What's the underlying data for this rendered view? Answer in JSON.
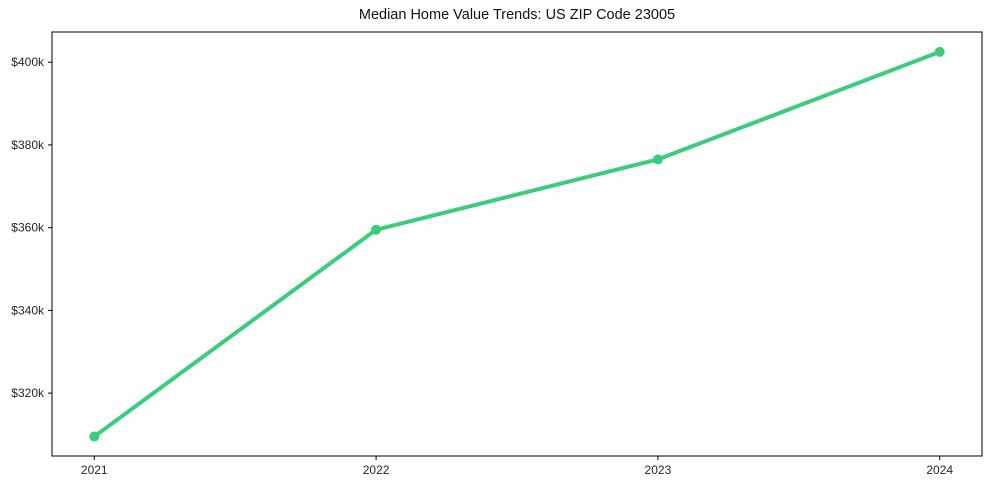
{
  "chart_data": {
    "type": "line",
    "title": "Median Home Value Trends: US ZIP Code 23005",
    "x": [
      2021,
      2022,
      2023,
      2024
    ],
    "xtick_labels": [
      "2021",
      "2022",
      "2023",
      "2024"
    ],
    "series": [
      {
        "name": "Median Home Value",
        "values": [
          309500,
          359500,
          376500,
          402500
        ]
      }
    ],
    "yticks": [
      320000,
      340000,
      360000,
      380000,
      400000
    ],
    "ytick_labels": [
      "$320k",
      "$340k",
      "$360k",
      "$380k",
      "$400k"
    ],
    "xlim": [
      2020.85,
      2024.15
    ],
    "ylim": [
      304800,
      407300
    ],
    "grid": false,
    "legend": "none",
    "frame": "full-box",
    "line_color": "#3bcd7d",
    "line_width": 4,
    "marker_radius": 5,
    "axis_color": "#000000",
    "tick_label_color": "#262626",
    "background_color": "#ffffff"
  }
}
